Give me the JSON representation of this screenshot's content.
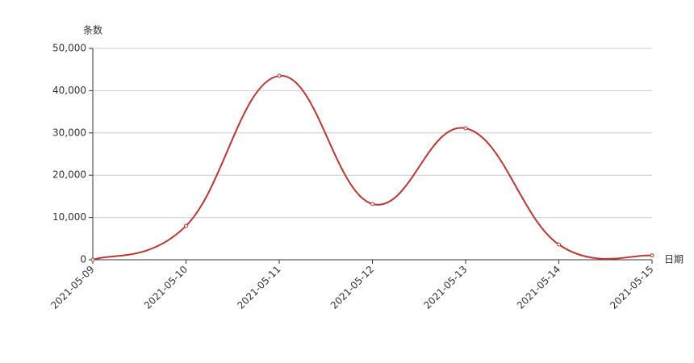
{
  "chart_data": {
    "type": "line",
    "y_axis_label": "条数",
    "x_axis_label": "日期",
    "categories": [
      "2021-05-09",
      "2021-05-10",
      "2021-05-11",
      "2021-05-12",
      "2021-05-13",
      "2021-05-14",
      "2021-05-15"
    ],
    "values": [
      0,
      8000,
      43500,
      13200,
      31100,
      3600,
      1000
    ],
    "color": "#c23531",
    "ylim": [
      0,
      50000
    ],
    "yticks": [
      0,
      {
        "value": 10000,
        "label": "10,000"
      },
      {
        "value": 20000,
        "label": "20,000"
      },
      {
        "value": 30000,
        "label": "30,000"
      },
      {
        "value": 40000,
        "label": "40,000"
      },
      {
        "value": 50000,
        "label": "50,000"
      }
    ],
    "grid": true,
    "smooth": true
  }
}
